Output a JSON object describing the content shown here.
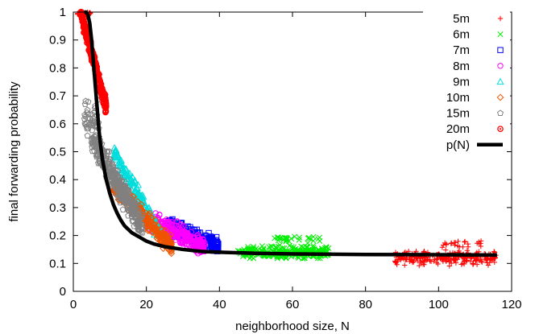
{
  "chart_data": {
    "type": "scatter",
    "title": "",
    "xlabel": "neighborhood size, N",
    "ylabel": "final forwarding probability",
    "xlim": [
      0,
      120
    ],
    "ylim": [
      0,
      1
    ],
    "x_ticks": [
      "0",
      "20",
      "40",
      "60",
      "80",
      "100",
      "120"
    ],
    "y_ticks": [
      "0",
      "0.1",
      "0.2",
      "0.3",
      "0.4",
      "0.5",
      "0.6",
      "0.7",
      "0.8",
      "0.9",
      "1"
    ],
    "grid": false,
    "legend_position": "top-right",
    "series": [
      {
        "name": "5m",
        "marker": "plus",
        "color": "#ff0000",
        "clusters": [
          {
            "x_range": [
              88,
              116
            ],
            "y_center": 0.12,
            "y_spread": 0.035,
            "count": 260
          },
          {
            "x_range": [
              100,
              112
            ],
            "y_center": 0.17,
            "y_spread": 0.02,
            "count": 25
          },
          {
            "x_range": [
              1,
              5
            ],
            "y_center": 0.995,
            "y_spread": 0.008,
            "count": 30
          }
        ]
      },
      {
        "name": "6m",
        "marker": "cross",
        "color": "#00ee00",
        "clusters": [
          {
            "x_range": [
              45,
              70
            ],
            "y_center": 0.14,
            "y_spread": 0.03,
            "count": 260
          },
          {
            "x_range": [
              55,
              68
            ],
            "y_center": 0.185,
            "y_spread": 0.02,
            "count": 30
          }
        ]
      },
      {
        "name": "7m",
        "marker": "square",
        "color": "#0000ff",
        "clusters": [
          {
            "x_range": [
              26,
              40
            ],
            "y_center": 0.19,
            "y_spread": 0.045,
            "count": 240
          }
        ]
      },
      {
        "name": "8m",
        "marker": "circle",
        "color": "#ff00ff",
        "clusters": [
          {
            "x_range": [
              20,
              36
            ],
            "y_center": 0.2,
            "y_spread": 0.05,
            "count": 300
          }
        ]
      },
      {
        "name": "9m",
        "marker": "triangle",
        "color": "#00dddd",
        "clusters": [
          {
            "x_range": [
              11,
              24
            ],
            "y_center": 0.33,
            "y_spread": 0.09,
            "count": 160
          }
        ]
      },
      {
        "name": "10m",
        "marker": "diamond",
        "color": "#ee5500",
        "clusters": [
          {
            "x_range": [
              11,
              27
            ],
            "y_center": 0.25,
            "y_spread": 0.06,
            "count": 320
          }
        ]
      },
      {
        "name": "15m",
        "marker": "pentagon",
        "color": "#808080",
        "clusters": [
          {
            "x_range": [
              5,
              19
            ],
            "y_center": 0.36,
            "y_spread": 0.1,
            "count": 320
          },
          {
            "x_range": [
              3,
              7
            ],
            "y_center": 0.62,
            "y_spread": 0.08,
            "count": 40
          }
        ]
      },
      {
        "name": "20m",
        "marker": "dotted-circle",
        "color": "#ff0000",
        "clusters": [
          {
            "x_range": [
              2,
              9
            ],
            "y_center": 0.85,
            "y_spread": 0.13,
            "count": 260
          }
        ]
      },
      {
        "name": "p(N)",
        "marker": "line",
        "color": "#000000",
        "x": [
          3,
          3.5,
          4,
          4.5,
          5,
          5.5,
          6,
          6.5,
          7,
          7.5,
          8,
          9,
          10,
          11,
          12,
          13,
          14,
          16,
          18,
          20,
          22,
          25,
          30,
          35,
          40,
          50,
          60,
          80,
          100,
          116
        ],
        "y": [
          1,
          1,
          0.99,
          0.96,
          0.9,
          0.82,
          0.74,
          0.66,
          0.58,
          0.52,
          0.47,
          0.4,
          0.35,
          0.31,
          0.28,
          0.255,
          0.235,
          0.21,
          0.195,
          0.18,
          0.17,
          0.16,
          0.15,
          0.143,
          0.14,
          0.136,
          0.134,
          0.132,
          0.131,
          0.13
        ]
      }
    ]
  }
}
